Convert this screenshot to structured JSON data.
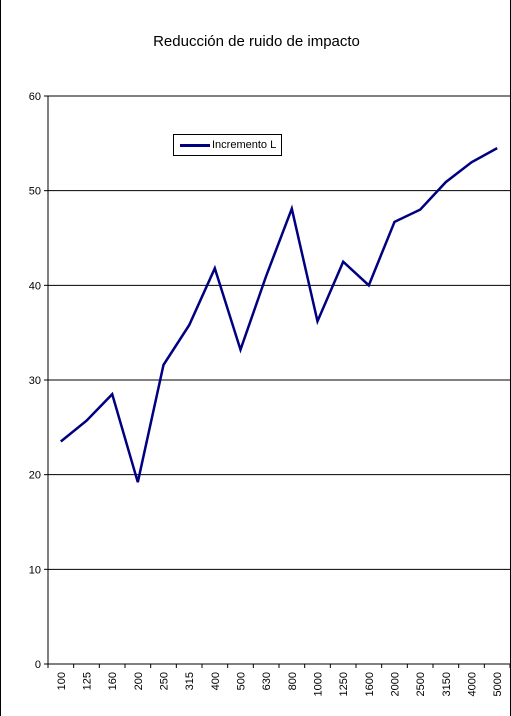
{
  "chart_data": {
    "type": "line",
    "title": "Reducción de ruido de impacto",
    "xlabel": "",
    "ylabel": "",
    "categories": [
      "100",
      "125",
      "160",
      "200",
      "250",
      "315",
      "400",
      "500",
      "630",
      "800",
      "1000",
      "1250",
      "1600",
      "2000",
      "2500",
      "3150",
      "4000",
      "5000"
    ],
    "series": [
      {
        "name": "Incremento L",
        "values": [
          23.5,
          25.7,
          28.5,
          19.2,
          31.6,
          35.8,
          41.8,
          33.2,
          41.0,
          48.1,
          36.2,
          42.5,
          40.0,
          46.7,
          48.0,
          50.9,
          53.0,
          54.5
        ],
        "color": "#000080"
      }
    ],
    "ylim": [
      0,
      60
    ],
    "yticks": [
      0,
      10,
      20,
      30,
      40,
      50,
      60
    ],
    "grid": true,
    "legend_placement": "inside-top-left"
  }
}
